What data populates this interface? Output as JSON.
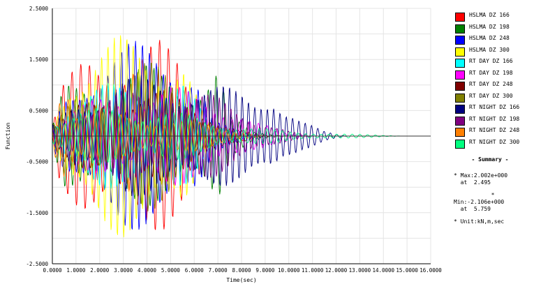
{
  "chart_data": {
    "type": "line",
    "title": "",
    "xlabel": "Time(sec)",
    "ylabel": "Function",
    "xlim": [
      0,
      16
    ],
    "ylim": [
      -2.5,
      2.5
    ],
    "x_ticks": [
      "0.0000",
      "1.0000",
      "2.0000",
      "3.0000",
      "4.0000",
      "5.0000",
      "6.0000",
      "7.0000",
      "8.0000",
      "9.0000",
      "10.0000",
      "11.0000",
      "12.0000",
      "13.0000",
      "14.0000",
      "15.0000",
      "16.0000"
    ],
    "y_ticks": [
      "2.5000",
      "1.5000",
      "0.5000",
      "-0.5000",
      "-1.5000",
      "-2.5000"
    ],
    "grid": true,
    "legend_position": "right",
    "series": [
      {
        "name": "HSLMA DZ 166",
        "color": "#ff0000",
        "envelope": [
          [
            0,
            0.2
          ],
          [
            0.3,
            1.0
          ],
          [
            1.5,
            1.6
          ],
          [
            3.0,
            1.9
          ],
          [
            4.5,
            1.9
          ],
          [
            5.5,
            1.6
          ],
          [
            6.0,
            0.8
          ],
          [
            6.8,
            0.3
          ],
          [
            8.0,
            0.1
          ],
          [
            9.0,
            0.0
          ]
        ]
      },
      {
        "name": "HSLMA DZ 198",
        "color": "#008000",
        "envelope": [
          [
            0,
            0.2
          ],
          [
            0.5,
            1.0
          ],
          [
            2.0,
            1.3
          ],
          [
            4.0,
            1.4
          ],
          [
            6.0,
            1.2
          ],
          [
            7.0,
            1.5
          ],
          [
            7.5,
            0.4
          ],
          [
            8.5,
            0.1
          ],
          [
            10.0,
            0.0
          ]
        ]
      },
      {
        "name": "HSLMA DZ 248",
        "color": "#0000ff",
        "envelope": [
          [
            0,
            0.2
          ],
          [
            0.5,
            0.8
          ],
          [
            1.5,
            1.5
          ],
          [
            2.5,
            1.8
          ],
          [
            4.0,
            1.9
          ],
          [
            5.0,
            2.0
          ],
          [
            6.0,
            1.5
          ],
          [
            6.8,
            0.3
          ],
          [
            8.0,
            0.1
          ],
          [
            9.0,
            0.0
          ]
        ]
      },
      {
        "name": "HSLMA DZ 300",
        "color": "#ffff00",
        "envelope": [
          [
            0,
            0.2
          ],
          [
            0.8,
            1.5
          ],
          [
            2.0,
            1.9
          ],
          [
            3.0,
            2.0
          ],
          [
            4.5,
            1.9
          ],
          [
            5.5,
            1.8
          ],
          [
            6.0,
            1.0
          ],
          [
            6.5,
            0.3
          ],
          [
            7.5,
            0.05
          ],
          [
            8.5,
            0.0
          ]
        ]
      },
      {
        "name": "RT DAY DZ 166",
        "color": "#00ffff",
        "envelope": [
          [
            0,
            0.2
          ],
          [
            0.5,
            0.7
          ],
          [
            2.0,
            1.0
          ],
          [
            4.0,
            1.2
          ],
          [
            5.5,
            1.1
          ],
          [
            6.5,
            0.4
          ],
          [
            8.0,
            0.1
          ],
          [
            9.0,
            0.0
          ]
        ]
      },
      {
        "name": "RT DAY DZ 198",
        "color": "#ff00ff",
        "envelope": [
          [
            0,
            0.2
          ],
          [
            1.0,
            0.6
          ],
          [
            3.0,
            0.9
          ],
          [
            5.0,
            1.0
          ],
          [
            7.0,
            0.8
          ],
          [
            8.5,
            0.3
          ],
          [
            10.0,
            0.05
          ],
          [
            11.0,
            0.0
          ]
        ]
      },
      {
        "name": "RT DAY DZ 248",
        "color": "#800000",
        "envelope": [
          [
            0,
            0.2
          ],
          [
            1.0,
            0.6
          ],
          [
            3.0,
            0.9
          ],
          [
            5.0,
            0.9
          ],
          [
            6.5,
            0.6
          ],
          [
            7.5,
            0.2
          ],
          [
            8.5,
            0.05
          ],
          [
            9.5,
            0.0
          ]
        ]
      },
      {
        "name": "RT DAY DZ 300",
        "color": "#808000",
        "envelope": [
          [
            0,
            0.2
          ],
          [
            1.0,
            0.8
          ],
          [
            2.5,
            1.2
          ],
          [
            4.0,
            1.5
          ],
          [
            5.0,
            1.3
          ],
          [
            6.0,
            0.6
          ],
          [
            7.0,
            0.2
          ],
          [
            8.0,
            0.0
          ]
        ]
      },
      {
        "name": "RT NIGHT DZ 166",
        "color": "#000080",
        "envelope": [
          [
            0,
            0.2
          ],
          [
            1.0,
            0.8
          ],
          [
            3.0,
            1.2
          ],
          [
            5.0,
            1.2
          ],
          [
            7.0,
            1.0
          ],
          [
            8.5,
            0.9
          ],
          [
            9.3,
            1.1
          ],
          [
            9.8,
            0.6
          ],
          [
            10.5,
            0.3
          ],
          [
            11.5,
            0.1
          ],
          [
            12.5,
            0.0
          ]
        ]
      },
      {
        "name": "RT NIGHT DZ 198",
        "color": "#800080",
        "envelope": [
          [
            0,
            0.2
          ],
          [
            1.0,
            0.6
          ],
          [
            3.0,
            0.9
          ],
          [
            5.0,
            0.9
          ],
          [
            7.0,
            0.8
          ],
          [
            8.0,
            0.6
          ],
          [
            9.0,
            0.3
          ],
          [
            10.0,
            0.1
          ],
          [
            11.0,
            0.0
          ]
        ]
      },
      {
        "name": "RT NIGHT DZ 248",
        "color": "#ff8000",
        "envelope": [
          [
            0,
            0.3
          ],
          [
            0.2,
            1.0
          ],
          [
            0.5,
            1.6
          ],
          [
            0.7,
            1.4
          ],
          [
            1.0,
            0.6
          ],
          [
            2.0,
            0.5
          ],
          [
            4.0,
            0.4
          ],
          [
            6.0,
            0.3
          ],
          [
            8.0,
            0.1
          ],
          [
            9.0,
            0.0
          ]
        ]
      },
      {
        "name": "RT NIGHT DZ 300",
        "color": "#00ff80",
        "envelope": [
          [
            0,
            0.3
          ],
          [
            1.0,
            0.5
          ],
          [
            3.0,
            0.6
          ],
          [
            5.0,
            0.5
          ],
          [
            6.0,
            0.4
          ],
          [
            8.0,
            0.2
          ],
          [
            10.0,
            0.1
          ],
          [
            12.0,
            0.05
          ],
          [
            15.0,
            0.0
          ]
        ]
      }
    ]
  },
  "summary": {
    "title": "- Summary -",
    "max_line": "* Max:2.002e+000",
    "max_at": "  at  2.495",
    "star": "*",
    "min_line": "Min:-2.106e+000",
    "min_at": "  at  5.759",
    "unit_line": "* Unit:kN,m,sec"
  }
}
